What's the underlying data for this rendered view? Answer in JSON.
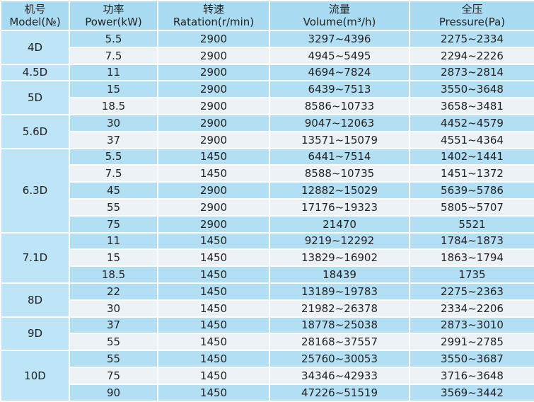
{
  "header": [
    {
      "cn": "机号",
      "en": "Model(№)"
    },
    {
      "cn": "功率",
      "en": "Power(kW)"
    },
    {
      "cn": "转速",
      "en": "Ratation(r/min)"
    },
    {
      "cn": "流量",
      "en": "Volume(m³/h)"
    },
    {
      "cn": "全压",
      "en": "Pressure(Pa)"
    }
  ],
  "groups": [
    {
      "model": "4D",
      "rows": [
        [
          "5.5",
          "2900",
          "3297~4396",
          "2275~2334"
        ],
        [
          "7.5",
          "2900",
          "4945~5495",
          "2294~2226"
        ]
      ]
    },
    {
      "model": "4.5D",
      "rows": [
        [
          "11",
          "2900",
          "4694~7824",
          "2873~2814"
        ]
      ]
    },
    {
      "model": "5D",
      "rows": [
        [
          "15",
          "2900",
          "6439~7513",
          "3550~3648"
        ],
        [
          "18.5",
          "2900",
          "8586~10733",
          "3658~3481"
        ]
      ]
    },
    {
      "model": "5.6D",
      "rows": [
        [
          "30",
          "2900",
          "9047~12063",
          "4452~4579"
        ],
        [
          "37",
          "2900",
          "13571~15079",
          "4551~4364"
        ]
      ]
    },
    {
      "model": "6.3D",
      "rows": [
        [
          "5.5",
          "1450",
          "6441~7514",
          "1402~1441"
        ],
        [
          "7.5",
          "1450",
          "8588~10735",
          "1451~1372"
        ],
        [
          "45",
          "2900",
          "12882~15029",
          "5639~5786"
        ],
        [
          "55",
          "2900",
          "17176~19323",
          "5805~5707"
        ],
        [
          "75",
          "2900",
          "21470",
          "5521"
        ]
      ]
    },
    {
      "model": "7.1D",
      "rows": [
        [
          "11",
          "1450",
          "9219~12292",
          "1784~1873"
        ],
        [
          "15",
          "1450",
          "13829~16902",
          "1863~1794"
        ],
        [
          "18.5",
          "1450",
          "18439",
          "1735"
        ]
      ]
    },
    {
      "model": "8D",
      "rows": [
        [
          "22",
          "1450",
          "13189~19783",
          "2275~2363"
        ],
        [
          "30",
          "1450",
          "21982~26378",
          "2334~2206"
        ]
      ]
    },
    {
      "model": "9D",
      "rows": [
        [
          "37",
          "1450",
          "18778~25038",
          "2873~3010"
        ],
        [
          "55",
          "1450",
          "28168~37557",
          "2991~2785"
        ]
      ]
    },
    {
      "model": "10D",
      "rows": [
        [
          "55",
          "1450",
          "25760~30053",
          "3550~3687"
        ],
        [
          "75",
          "1450",
          "34346~42933",
          "3716~3648"
        ],
        [
          "90",
          "1450",
          "47226~51519",
          "3569~3442"
        ]
      ]
    }
  ]
}
